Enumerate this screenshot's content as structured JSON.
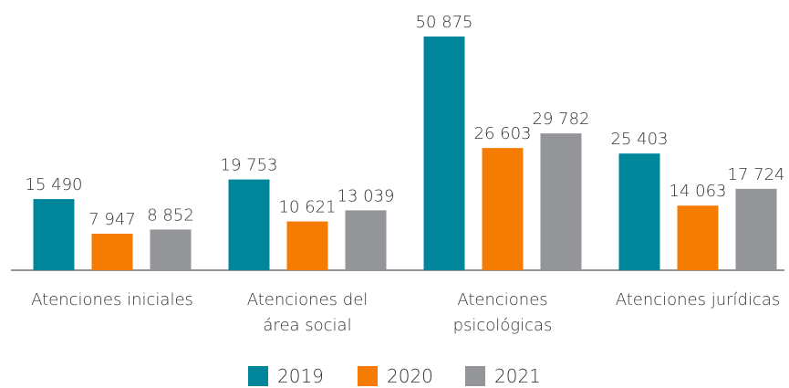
{
  "chart_data": {
    "type": "bar",
    "categories": [
      "Atenciones iniciales",
      "Atenciones del\nárea social",
      "Atenciones\npsicológicas",
      "Atenciones jurídicas"
    ],
    "series": [
      {
        "name": "2019",
        "color": "#00869b",
        "values": [
          15490,
          19753,
          50875,
          25403
        ],
        "value_labels": [
          "15 490",
          "19 753",
          "50 875",
          "25 403"
        ]
      },
      {
        "name": "2020",
        "color": "#f57c00",
        "values": [
          7947,
          10621,
          26603,
          14063
        ],
        "value_labels": [
          "7 947",
          "10 621",
          "26 603",
          "14 063"
        ]
      },
      {
        "name": "2021",
        "color": "#939598",
        "values": [
          8852,
          13039,
          29782,
          17724
        ],
        "value_labels": [
          "8 852",
          "13 039",
          "29 782",
          "17 724"
        ]
      }
    ]
  }
}
